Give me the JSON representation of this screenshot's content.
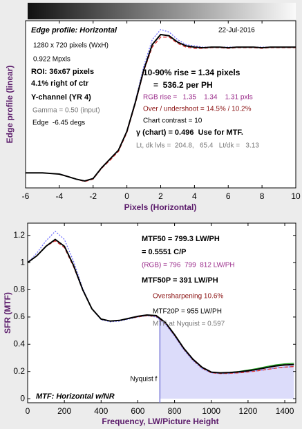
{
  "chart_data": [
    {
      "type": "line",
      "title": "Edge profile: Horizontal",
      "date": "22-Jul-2016",
      "xlabel": "Pixels (Horizontal)",
      "ylabel": "Edge profile (linear)",
      "annotations": [
        "1280 x 720 pixels (WxH)",
        "0.922 Mpxls",
        "ROI: 36x67 pixels",
        "4.1% right of ctr",
        "Y-channel (YR 4)",
        "Gamma = 0.50 (input)",
        "Edge  -6.45 degs",
        "10-90% rise = 1.34 pixels",
        "=  536.2 per PH",
        "RGB rise =   1.35    1.34    1.31 pxls",
        "Over / undershoot = 14.5% / 10.2%",
        "Chart contrast = 10",
        "γ (chart) = 0.496  Use for MTF.",
        "Lt, dk lvls =  204.8,   65.4   Lt/dk =   3.13"
      ],
      "x": [
        -6,
        -5.5,
        -5,
        -4.5,
        -4,
        -3.5,
        -3,
        -2.5,
        -2,
        -1.5,
        -1,
        -0.5,
        0,
        0.5,
        1,
        1.5,
        2,
        2.5,
        3,
        3.5,
        4,
        4.5,
        5,
        5.5,
        6,
        6.5,
        7,
        7.5,
        8,
        8.5,
        9,
        9.5,
        10
      ],
      "series": [
        {
          "color": "#7070ff",
          "linestyle": "dotted",
          "values": [
            0,
            0,
            0,
            -0.005,
            -0.01,
            -0.03,
            -0.05,
            -0.065,
            -0.045,
            0.04,
            0.11,
            0.18,
            0.33,
            0.57,
            0.85,
            1.06,
            1.14,
            1.12,
            1.06,
            1.02,
            1.01,
            1.0,
            1.0,
            1.0,
            1.0,
            1.0,
            1.0,
            1.0,
            1.0,
            1.0,
            1.0,
            1.0,
            1.0
          ]
        },
        {
          "color": "#e03030",
          "linestyle": "dashed",
          "values": [
            0,
            0,
            0,
            -0.005,
            -0.01,
            -0.03,
            -0.05,
            -0.07,
            -0.05,
            0.035,
            0.1,
            0.17,
            0.32,
            0.55,
            0.81,
            1.0,
            1.08,
            1.08,
            1.03,
            1.0,
            0.99,
            0.99,
            0.995,
            0.995,
            0.99,
            0.995,
            0.995,
            0.995,
            0.99,
            0.995,
            0.995,
            0.995,
            0.995
          ]
        },
        {
          "color": "#000000",
          "linestyle": "solid",
          "values": [
            0,
            0,
            0,
            -0.005,
            -0.01,
            -0.03,
            -0.05,
            -0.065,
            -0.045,
            0.04,
            0.11,
            0.18,
            0.33,
            0.56,
            0.82,
            1.02,
            1.1,
            1.09,
            1.04,
            1.01,
            1.0,
            0.995,
            1.0,
            1.0,
            0.995,
            1.0,
            1.0,
            1.0,
            0.995,
            1.0,
            1.0,
            1.0,
            1.0
          ]
        }
      ],
      "xlim": [
        -6,
        10
      ],
      "xticks": [
        -6,
        -4,
        -2,
        0,
        2,
        4,
        6,
        8,
        10
      ],
      "ylim": [
        -0.12,
        1.21
      ]
    },
    {
      "type": "line",
      "title": "MTF: Horizontal w/NR",
      "xlabel": "Frequency, LW/Picture Height",
      "ylabel": "SFR (MTF)",
      "annotations": [
        "MTF50 = 799.3 LW/PH",
        "= 0.5551 C/P",
        "(RGB) = 796  799  812 LW/PH",
        "MTF50P = 391 LW/PH",
        "Oversharpening 10.6%",
        "MTF20P = 955 LW/PH",
        "MTF at Nyquist = 0.597"
      ],
      "nyquist": {
        "value": 720,
        "label": "Nyquist f"
      },
      "x": [
        0,
        50,
        100,
        150,
        200,
        250,
        300,
        350,
        400,
        450,
        500,
        550,
        600,
        650,
        700,
        750,
        800,
        850,
        900,
        950,
        1000,
        1050,
        1100,
        1150,
        1200,
        1250,
        1300,
        1350,
        1400,
        1450
      ],
      "series": [
        {
          "color": "#7070ff",
          "linestyle": "dotted",
          "values": [
            1.0,
            1.07,
            1.16,
            1.23,
            1.17,
            1.01,
            0.81,
            0.66,
            0.58,
            0.565,
            0.57,
            0.585,
            0.6,
            0.61,
            0.6,
            0.55,
            0.46,
            0.36,
            0.28,
            0.22,
            0.19,
            0.185,
            0.185,
            0.19,
            0.198,
            0.205,
            0.215,
            0.225,
            0.232,
            0.235
          ]
        },
        {
          "color": "#e03030",
          "linestyle": "dashed",
          "values": [
            1.0,
            1.05,
            1.12,
            1.16,
            1.11,
            0.97,
            0.8,
            0.66,
            0.585,
            0.57,
            0.575,
            0.59,
            0.6,
            0.61,
            0.605,
            0.555,
            0.465,
            0.365,
            0.285,
            0.225,
            0.19,
            0.185,
            0.187,
            0.19,
            0.196,
            0.204,
            0.214,
            0.224,
            0.232,
            0.236
          ]
        },
        {
          "color": "#20a020",
          "linestyle": "solid",
          "values": [
            1.0,
            1.05,
            1.12,
            1.17,
            1.12,
            0.98,
            0.8,
            0.66,
            0.585,
            0.57,
            0.575,
            0.59,
            0.605,
            0.615,
            0.61,
            0.56,
            0.47,
            0.37,
            0.29,
            0.23,
            0.195,
            0.19,
            0.193,
            0.2,
            0.21,
            0.222,
            0.236,
            0.248,
            0.256,
            0.26
          ]
        },
        {
          "color": "#000000",
          "linestyle": "solid",
          "values": [
            1.0,
            1.05,
            1.12,
            1.17,
            1.12,
            0.98,
            0.8,
            0.66,
            0.585,
            0.57,
            0.575,
            0.59,
            0.605,
            0.615,
            0.61,
            0.56,
            0.47,
            0.37,
            0.29,
            0.23,
            0.195,
            0.19,
            0.192,
            0.197,
            0.205,
            0.215,
            0.228,
            0.24,
            0.248,
            0.25
          ]
        }
      ],
      "xlim": [
        0,
        1460
      ],
      "xticks": [
        0,
        200,
        400,
        600,
        800,
        1000,
        1200,
        1400
      ],
      "ylim": [
        -0.03,
        1.29
      ],
      "yticks": [
        0,
        0.2,
        0.4,
        0.6,
        0.8,
        1,
        1.2
      ]
    }
  ]
}
